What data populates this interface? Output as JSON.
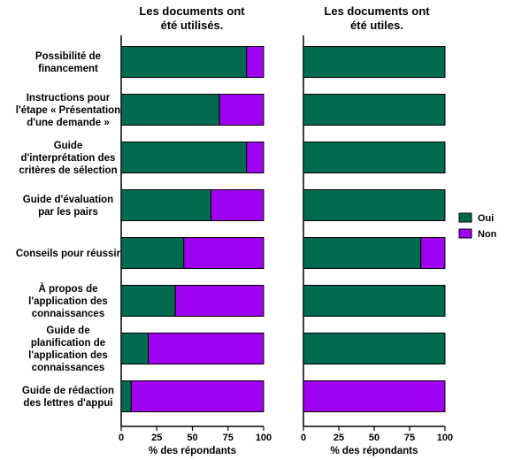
{
  "chart_data": [
    {
      "type": "bar",
      "orientation": "horizontal",
      "stacked": true,
      "title": "Les documents ont été utilisés.",
      "title_lines": [
        "Les documents ont",
        "été utilisés."
      ],
      "xlabel": "% des répondants",
      "xlim": [
        0,
        100
      ],
      "xticks": [
        "0",
        "25",
        "50",
        "75",
        "100"
      ],
      "categories": [
        "Possibilité de financement",
        "Instructions pour l'étape « Présentation d'une demande »",
        "Guide d'interprétation des critères de sélection",
        "Guide d'évaluation par les pairs",
        "Conseils pour réussir",
        "À propos de l'application des connaissances",
        "Guide de planification de l'application des connaissances",
        "Guide de rédaction des lettres d'appui"
      ],
      "series": [
        {
          "name": "Oui",
          "color": "#006a4e",
          "values": [
            88,
            69,
            88,
            63,
            44,
            38,
            19,
            7
          ]
        },
        {
          "name": "Non",
          "color": "#a000f0",
          "values": [
            12,
            31,
            12,
            37,
            56,
            62,
            81,
            93
          ]
        }
      ]
    },
    {
      "type": "bar",
      "orientation": "horizontal",
      "stacked": true,
      "title": "Les documents ont été utiles.",
      "title_lines": [
        "Les documents ont",
        "été utiles."
      ],
      "xlabel": "% des répondants",
      "xlim": [
        0,
        100
      ],
      "xticks": [
        "0",
        "25",
        "50",
        "75",
        "100"
      ],
      "categories": [
        "Possibilité de financement",
        "Instructions pour l'étape « Présentation d'une demande »",
        "Guide d'interprétation des critères de sélection",
        "Guide d'évaluation par les pairs",
        "Conseils pour réussir",
        "À propos de l'application des connaissances",
        "Guide de planification de l'application des connaissances",
        "Guide de rédaction des lettres d'appui"
      ],
      "series": [
        {
          "name": "Oui",
          "color": "#006a4e",
          "values": [
            100,
            100,
            100,
            100,
            83,
            100,
            100,
            0
          ]
        },
        {
          "name": "Non",
          "color": "#a000f0",
          "values": [
            0,
            0,
            0,
            0,
            17,
            0,
            0,
            100
          ]
        }
      ]
    }
  ],
  "category_label_lines": [
    [
      "Possibilité de",
      "financement"
    ],
    [
      "Instructions pour",
      "l'étape « Présentation",
      "d'une demande »"
    ],
    [
      "Guide",
      "d'interprétation des",
      "critères de sélection"
    ],
    [
      "Guide d'évaluation",
      "par les pairs"
    ],
    [
      "Conseils pour réussir"
    ],
    [
      "À propos de",
      "l'application des",
      "connaissances"
    ],
    [
      "Guide de",
      "planification de",
      "l'application des",
      "connaissances"
    ],
    [
      "Guide de rédaction",
      "des lettres d'appui"
    ]
  ],
  "legend": {
    "placement": "right",
    "items": [
      {
        "label": "Oui",
        "color": "#006a4e"
      },
      {
        "label": "Non",
        "color": "#a000f0"
      }
    ]
  }
}
